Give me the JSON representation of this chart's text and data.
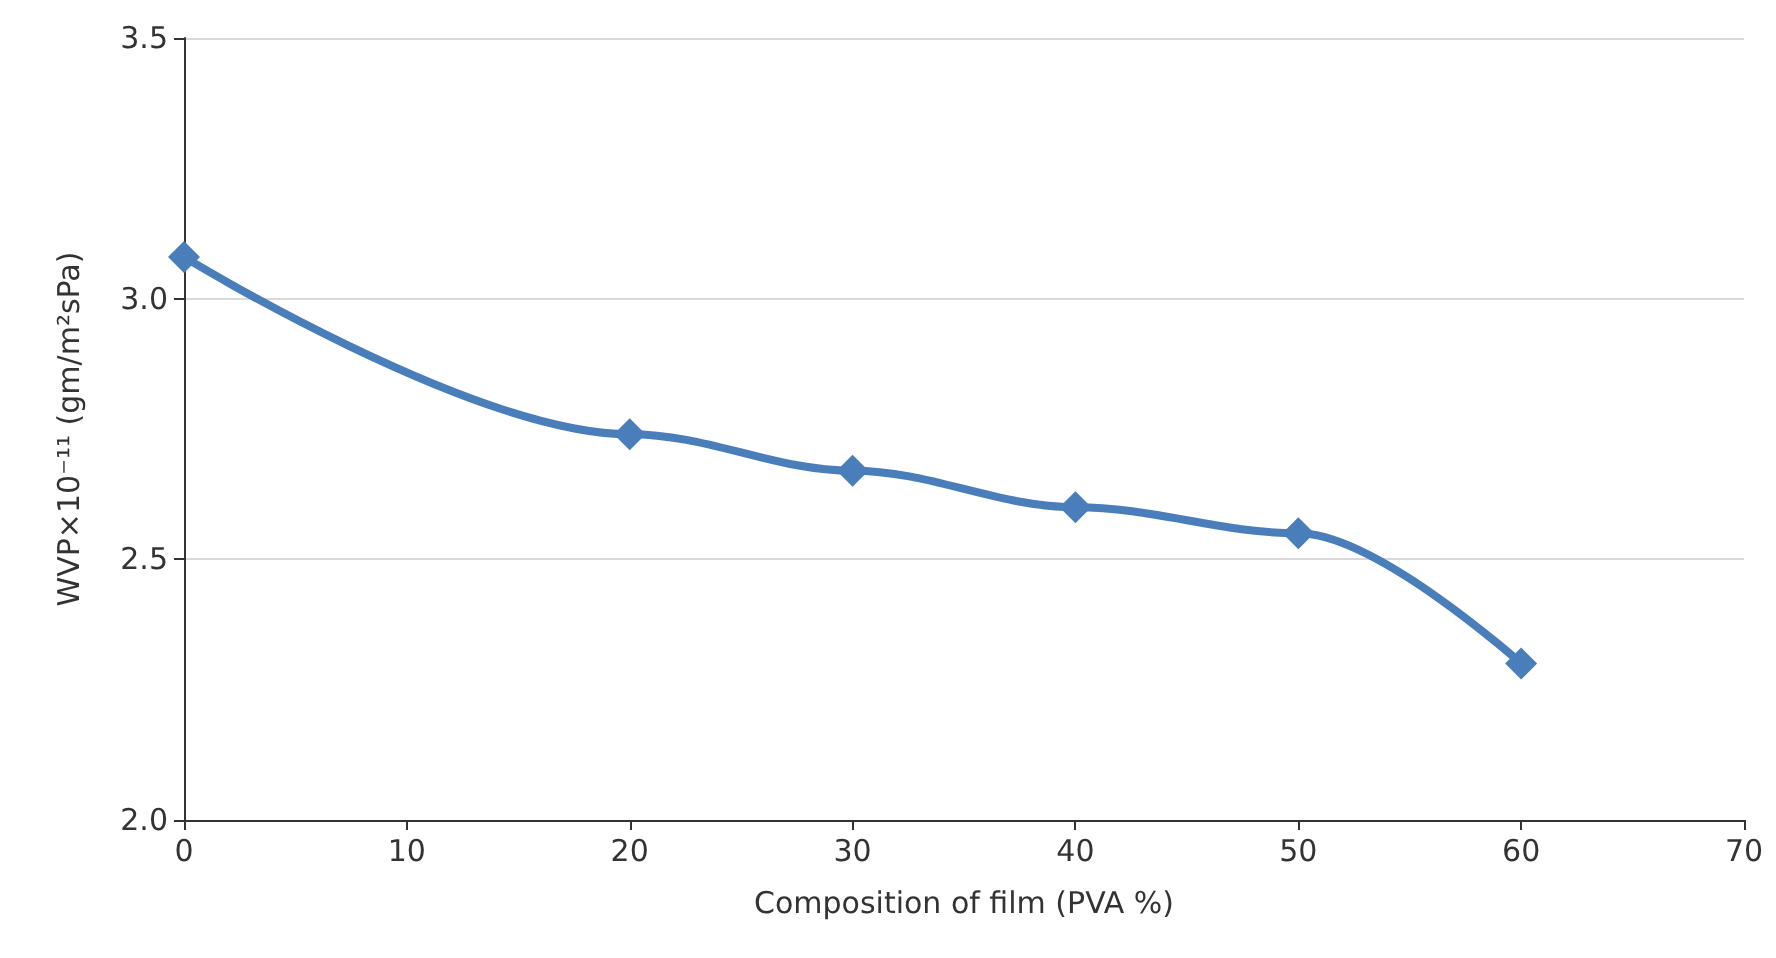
{
  "chart_data": {
    "type": "line",
    "xlabel": "Composition of film (PVA %)",
    "ylabel": "WVP×10⁻¹¹ (gm/m²sPa)",
    "x": [
      0,
      20,
      30,
      40,
      50,
      60
    ],
    "series": [
      {
        "color": "#4a7ebb",
        "values": [
          3.08,
          2.74,
          2.67,
          2.6,
          2.55,
          2.3
        ]
      }
    ],
    "xlim": [
      0,
      70
    ],
    "xticks": [
      0,
      10,
      20,
      30,
      40,
      50,
      60,
      70
    ],
    "ylim": [
      2,
      3.5
    ],
    "yticks": [
      {
        "value": 2,
        "label": "2.0"
      },
      {
        "value": 2.5,
        "label": "2.5"
      },
      {
        "value": 3,
        "label": "3.0"
      },
      {
        "value": 3.5,
        "label": "3.5"
      }
    ],
    "grid": "y",
    "marker": "diamond",
    "line_style": "solid"
  }
}
